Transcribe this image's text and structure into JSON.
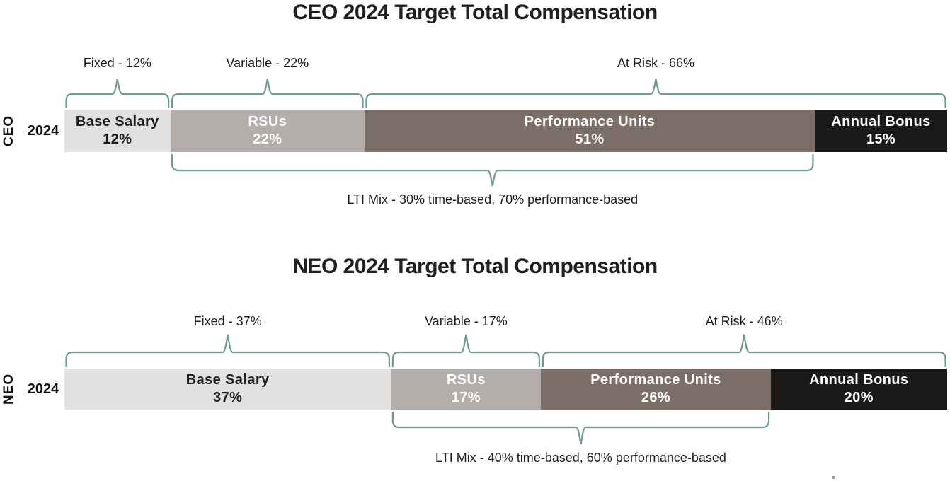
{
  "background_color": "#ffffff",
  "brace_color": "#6d9c8c",
  "title_color": "#1f1f1f",
  "chart_data": [
    {
      "type": "bar",
      "orientation": "horizontal-stacked",
      "unit": "%",
      "title": "CEO 2024 Target Total Compensation",
      "row_label": "CEO",
      "year_label": "2024",
      "xlim": [
        0,
        100
      ],
      "segments": [
        {
          "name": "Base Salary",
          "value": 12,
          "value_label": "12%",
          "color": "#e2e1df",
          "text_color": "#1d1d1d"
        },
        {
          "name": "RSUs",
          "value": 22,
          "value_label": "22%",
          "color": "#b3aeab",
          "text_color": "#ffffff"
        },
        {
          "name": "Performance Units",
          "value": 51,
          "value_label": "51%",
          "color": "#7a6e66",
          "text_color": "#ffffff"
        },
        {
          "name": "Annual Bonus",
          "value": 15,
          "value_label": "15%",
          "color": "#1b1a18",
          "text_color": "#ffffff"
        }
      ],
      "top_groups": [
        {
          "label": "Fixed - 12%",
          "value": 12,
          "covers": [
            0
          ]
        },
        {
          "label": "Variable - 22%",
          "value": 22,
          "covers": [
            1
          ]
        },
        {
          "label": "At Risk - 66%",
          "value": 66,
          "covers": [
            2,
            3
          ]
        }
      ],
      "bottom_group": {
        "label": "LTI Mix - 30% time-based, 70% performance-based",
        "covers": [
          1,
          2
        ]
      }
    },
    {
      "type": "bar",
      "orientation": "horizontal-stacked",
      "unit": "%",
      "title": "NEO 2024 Target Total Compensation",
      "row_label": "NEO",
      "year_label": "2024",
      "xlim": [
        0,
        100
      ],
      "segments": [
        {
          "name": "Base Salary",
          "value": 37,
          "value_label": "37%",
          "color": "#e2e1df",
          "text_color": "#1d1d1d"
        },
        {
          "name": "RSUs",
          "value": 17,
          "value_label": "17%",
          "color": "#b3aeab",
          "text_color": "#ffffff"
        },
        {
          "name": "Performance Units",
          "value": 26,
          "value_label": "26%",
          "color": "#7a6e66",
          "text_color": "#ffffff"
        },
        {
          "name": "Annual Bonus",
          "value": 20,
          "value_label": "20%",
          "color": "#1b1a18",
          "text_color": "#ffffff"
        }
      ],
      "top_groups": [
        {
          "label": "Fixed - 37%",
          "value": 37,
          "covers": [
            0
          ]
        },
        {
          "label": "Variable - 17%",
          "value": 17,
          "covers": [
            1
          ]
        },
        {
          "label": "At Risk - 46%",
          "value": 46,
          "covers": [
            2,
            3
          ]
        }
      ],
      "bottom_group": {
        "label": "LTI Mix - 40% time-based, 60% performance-based",
        "covers": [
          1,
          2
        ]
      }
    }
  ]
}
